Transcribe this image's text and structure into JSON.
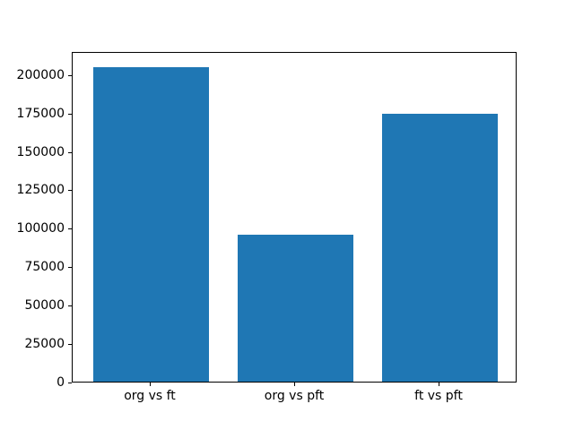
{
  "chart_data": {
    "type": "bar",
    "categories": [
      "org vs ft",
      "org vs pft",
      "ft vs pft"
    ],
    "values": [
      204500,
      95500,
      174000
    ],
    "yticks": [
      0,
      25000,
      50000,
      75000,
      100000,
      125000,
      150000,
      175000,
      200000
    ],
    "ylim": [
      0,
      215000
    ],
    "bar_color": "#1f77b4",
    "title": "",
    "xlabel": "",
    "ylabel": "",
    "grid": false,
    "legend": null
  },
  "colors": {
    "background": "#ffffff",
    "axis": "#000000",
    "bar": "#1f77b4"
  }
}
